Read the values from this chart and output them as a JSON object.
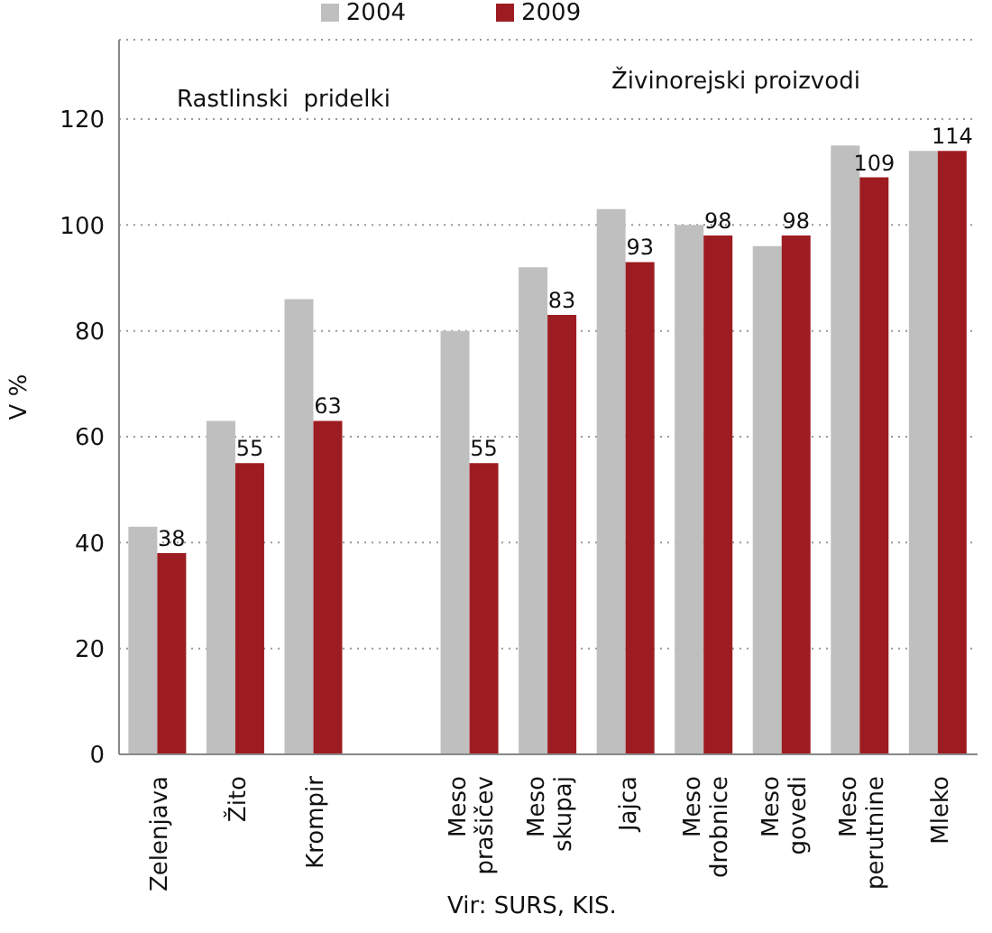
{
  "chart_data": {
    "type": "bar",
    "ylabel": "V %",
    "categories": [
      "Zelenjava",
      "Žito",
      "Krompir",
      null,
      "Meso prašičev",
      "Meso skupaj",
      "Jajca",
      "Meso drobnice",
      "Meso govedi",
      "Meso perutnine",
      "Mleko"
    ],
    "series": [
      {
        "name": "2004",
        "color": "#bfbfbf",
        "values": [
          43,
          63,
          86,
          null,
          80,
          92,
          103,
          100,
          96,
          115,
          114
        ]
      },
      {
        "name": "2009",
        "color": "#9d1c21",
        "values": [
          38,
          55,
          63,
          null,
          55,
          83,
          93,
          98,
          98,
          109,
          114
        ],
        "value_labels": [
          "38",
          "55",
          "63",
          null,
          "55",
          "83",
          "93",
          "98",
          "98",
          "109",
          "114"
        ]
      }
    ],
    "ylim": [
      0,
      135
    ],
    "yticks": [
      0,
      20,
      40,
      60,
      80,
      100,
      120
    ],
    "grid": "y",
    "legend": "top",
    "annotations": [
      "Rastlinski  pridelki",
      "Živinorejski proizvodi",
      "Vir: SURS, KIS."
    ]
  }
}
